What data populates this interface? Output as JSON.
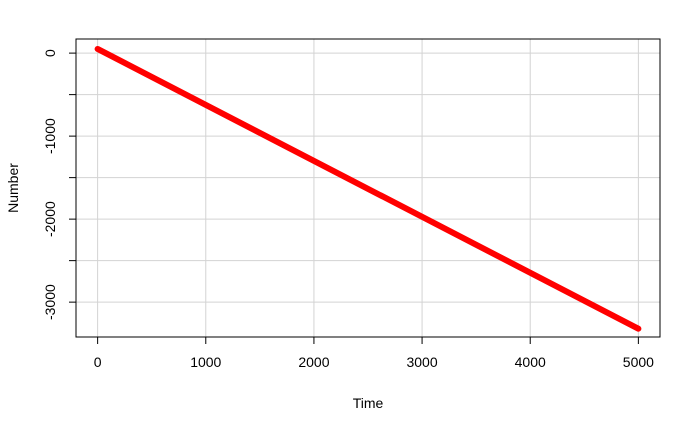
{
  "chart_data": {
    "type": "line",
    "title": "",
    "xlabel": "Time",
    "ylabel": "Number",
    "xlim": [
      -200,
      5200
    ],
    "ylim": [
      -3420,
      170
    ],
    "x_ticks": [
      0,
      1000,
      2000,
      3000,
      4000,
      5000
    ],
    "x_tick_labels": [
      "0",
      "1000",
      "2000",
      "3000",
      "4000",
      "5000"
    ],
    "y_ticks": [
      0,
      -1000,
      -2000,
      -3000
    ],
    "y_tick_labels": [
      "0",
      "-1000",
      "-2000",
      "-3000"
    ],
    "x_minor_ticks": [],
    "y_minor_ticks": [
      -500,
      -1500,
      -2500
    ],
    "grid": true,
    "x_gridlines": [
      0,
      1000,
      2000,
      3000,
      4000,
      5000
    ],
    "y_gridlines": [
      0,
      -500,
      -1000,
      -1500,
      -2000,
      -2500,
      -3000
    ],
    "series": [
      {
        "name": "Number",
        "x": [
          0,
          5000
        ],
        "values": [
          50,
          -3320
        ]
      }
    ],
    "colors": {
      "series": "#ff0000",
      "grid": "#d3d3d3",
      "axis": "#000000"
    }
  }
}
